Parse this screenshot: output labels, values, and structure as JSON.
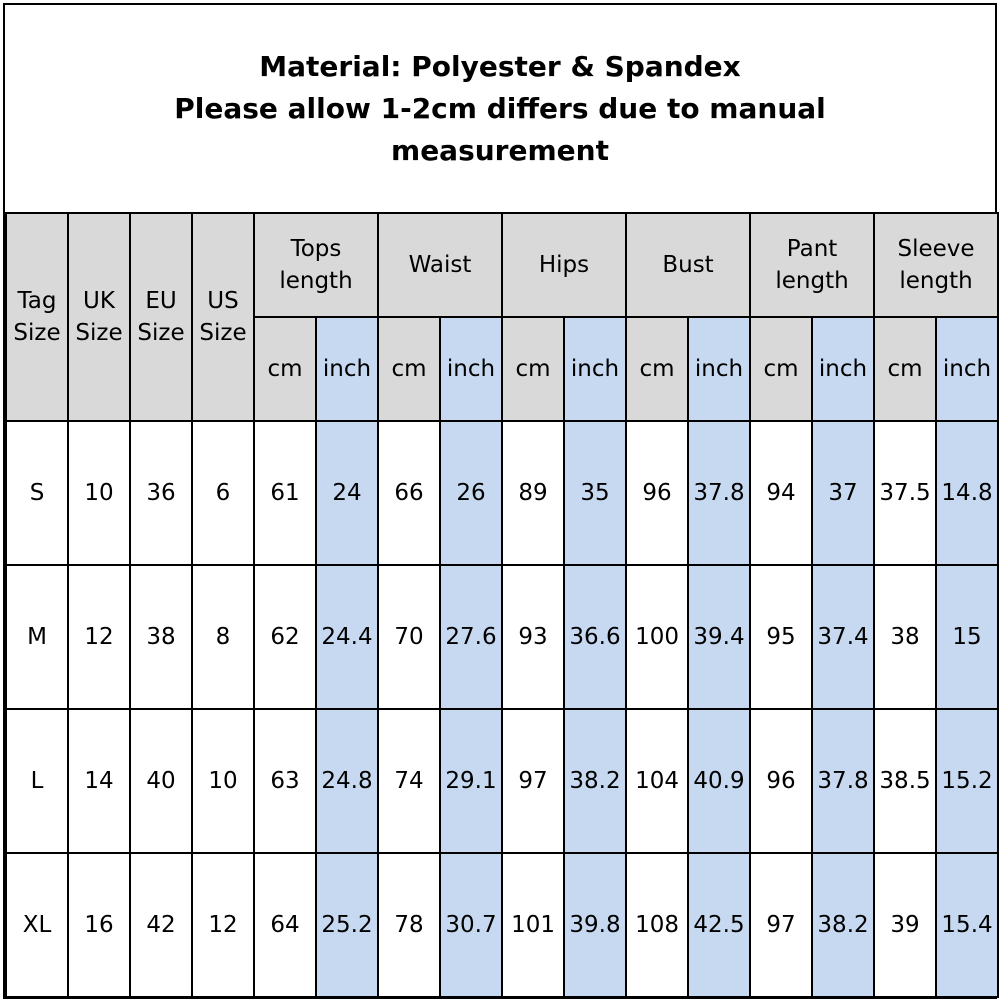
{
  "title_lines": [
    "Material: Polyester & Spandex",
    "Please allow 1-2cm differs due to manual",
    "measurement"
  ],
  "size_columns": [
    [
      "Tag",
      "Size"
    ],
    [
      "UK",
      "Size"
    ],
    [
      "EU",
      "Size"
    ],
    [
      "US",
      "Size"
    ]
  ],
  "measure_groups": [
    [
      "Tops",
      "length"
    ],
    [
      "Waist"
    ],
    [
      "Hips"
    ],
    [
      "Bust"
    ],
    [
      "Pant",
      "length"
    ],
    [
      "Sleeve",
      "length"
    ]
  ],
  "unit_labels": [
    "cm",
    "inch"
  ],
  "rows": [
    [
      "S",
      "10",
      "36",
      "6",
      "61",
      "24",
      "66",
      "26",
      "89",
      "35",
      "96",
      "37.8",
      "94",
      "37",
      "37.5",
      "14.8"
    ],
    [
      "M",
      "12",
      "38",
      "8",
      "62",
      "24.4",
      "70",
      "27.6",
      "93",
      "36.6",
      "100",
      "39.4",
      "95",
      "37.4",
      "38",
      "15"
    ],
    [
      "L",
      "14",
      "40",
      "10",
      "63",
      "24.8",
      "74",
      "29.1",
      "97",
      "38.2",
      "104",
      "40.9",
      "96",
      "37.8",
      "38.5",
      "15.2"
    ],
    [
      "XL",
      "16",
      "42",
      "12",
      "64",
      "25.2",
      "78",
      "30.7",
      "101",
      "39.8",
      "108",
      "42.5",
      "97",
      "38.2",
      "39",
      "15.4"
    ]
  ],
  "colors": {
    "header_gray": "#d9d9d9",
    "inch_blue": "#c6d9f1",
    "border": "#000000"
  }
}
